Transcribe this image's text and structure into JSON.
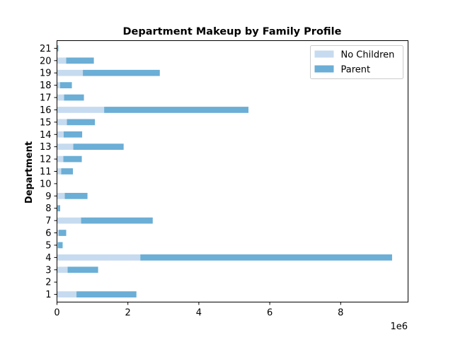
{
  "chart_data": {
    "type": "bar",
    "orientation": "horizontal",
    "stacked": true,
    "title": "Department Makeup by Family Profile",
    "xlabel": "",
    "ylabel": "Department",
    "x_scale_label": "1e6",
    "xlim": [
      0,
      9.9
    ],
    "x_ticks": [
      0,
      2,
      4,
      6,
      8
    ],
    "grid": false,
    "legend_position": "top-right",
    "categories": [
      "1",
      "2",
      "3",
      "4",
      "5",
      "6",
      "7",
      "8",
      "9",
      "10",
      "11",
      "12",
      "13",
      "14",
      "15",
      "16",
      "17",
      "18",
      "19",
      "20",
      "21"
    ],
    "series": [
      {
        "name": "No Children",
        "color": "#c6dbef",
        "values": [
          0.55,
          0.0,
          0.3,
          2.35,
          0.03,
          0.05,
          0.68,
          0.02,
          0.22,
          0.0,
          0.12,
          0.18,
          0.46,
          0.19,
          0.28,
          1.33,
          0.2,
          0.09,
          0.73,
          0.26,
          0.01
        ]
      },
      {
        "name": "Parent",
        "color": "#6baed6",
        "values": [
          1.69,
          0.01,
          0.86,
          7.1,
          0.13,
          0.21,
          2.02,
          0.07,
          0.64,
          0.01,
          0.33,
          0.52,
          1.42,
          0.52,
          0.79,
          4.07,
          0.56,
          0.33,
          2.17,
          0.78,
          0.03
        ]
      }
    ]
  }
}
